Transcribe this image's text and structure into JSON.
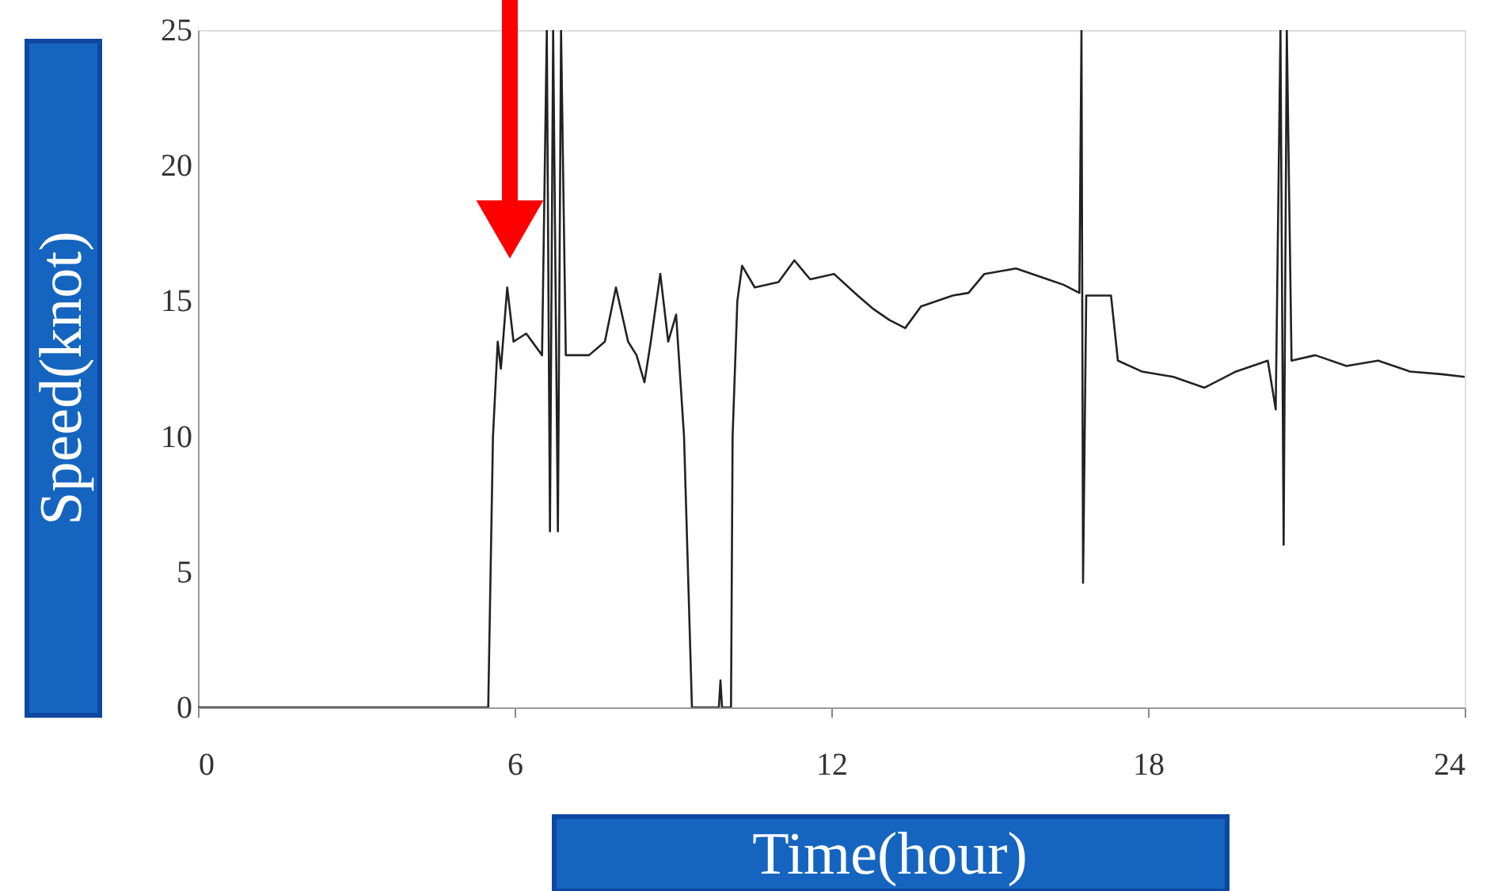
{
  "chart_data": {
    "type": "line",
    "xlabel": "Time(hour)",
    "ylabel": "Speed(knot)",
    "x": [
      0,
      5.5,
      5.59,
      5.68,
      5.74,
      5.86,
      5.98,
      6.22,
      6.52,
      6.61,
      6.67,
      6.73,
      6.82,
      6.88,
      6.97,
      7.41,
      7.71,
      7.92,
      8.15,
      8.31,
      8.46,
      8.58,
      8.76,
      8.91,
      9.06,
      9.21,
      9.36,
      9.87,
      9.9,
      9.93,
      10.1,
      10.13,
      10.22,
      10.31,
      10.55,
      11.0,
      11.3,
      11.6,
      12.05,
      12.5,
      12.8,
      13.1,
      13.4,
      13.7,
      14.3,
      14.6,
      14.9,
      15.5,
      16.1,
      16.4,
      16.7,
      16.74,
      16.77,
      16.83,
      17.3,
      17.43,
      17.88,
      18.48,
      19.07,
      19.67,
      20.27,
      20.42,
      20.51,
      20.57,
      20.63,
      20.72,
      21.17,
      21.76,
      22.36,
      22.96,
      23.56,
      24.0
    ],
    "series": [
      {
        "color": "#222222",
        "values": [
          0,
          0,
          10,
          13.5,
          12.5,
          15.5,
          13.5,
          13.8,
          13,
          25,
          6.5,
          25,
          6.5,
          25,
          13,
          13,
          13.5,
          15.5,
          13.5,
          13,
          12,
          13.5,
          16,
          13.5,
          14.5,
          10,
          0,
          0,
          1,
          0,
          0,
          10,
          15,
          16.3,
          15.5,
          15.7,
          16.5,
          15.8,
          16,
          15.2,
          14.7,
          14.3,
          14.0,
          14.8,
          15.2,
          15.3,
          16.0,
          16.2,
          15.8,
          15.6,
          15.3,
          25,
          4.6,
          15.2,
          15.2,
          12.8,
          12.4,
          12.2,
          11.8,
          12.4,
          12.8,
          11,
          25,
          6,
          25,
          12.8,
          13.0,
          12.6,
          12.8,
          12.4,
          12.3,
          12.2
        ]
      }
    ],
    "xlim": [
      0,
      24
    ],
    "xticks": [
      0,
      6,
      12,
      18,
      24
    ],
    "ylim": [
      0,
      25
    ],
    "yticks": [
      0,
      5,
      10,
      15,
      20,
      25
    ],
    "grid": false,
    "marker": "none",
    "line_style": "solid"
  }
}
